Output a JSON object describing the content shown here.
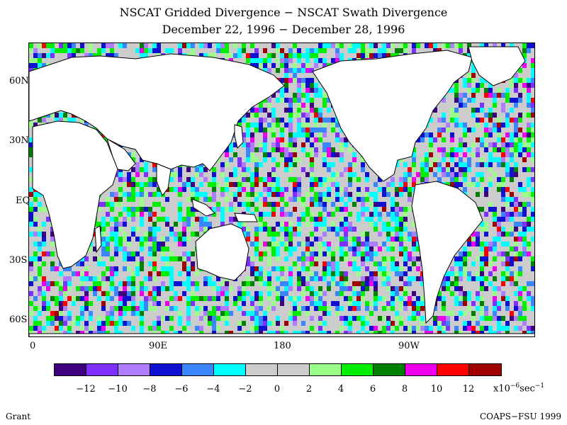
{
  "title_line1": "NSCAT Gridded Divergence − NSCAT Swath Divergence",
  "title_line2": "December 22, 1996 − December 28, 1996",
  "lat_labels": [
    "60N",
    "30N",
    "EQ",
    "30S",
    "60S"
  ],
  "lon_labels": [
    "0",
    "90E",
    "180",
    "90W"
  ],
  "colorbar": {
    "colors": [
      "#3f0080",
      "#7f30ff",
      "#b07cff",
      "#1010d0",
      "#3a86ff",
      "#00ffff",
      "#cccccc",
      "#cccccc",
      "#99ff88",
      "#00ee00",
      "#008000",
      "#ee00ee",
      "#ff0000",
      "#a00000"
    ],
    "tick_labels": [
      "−12",
      "−10",
      "−8",
      "−6",
      "−4",
      "−2",
      "0",
      "2",
      "4",
      "6",
      "8",
      "10",
      "12"
    ],
    "units_prefix": "x10",
    "units_exp": "−6",
    "units_suffix": "sec",
    "units_exp2": "−1"
  },
  "credit_left": "Grant",
  "credit_right": "COAPS−FSU 1999"
}
